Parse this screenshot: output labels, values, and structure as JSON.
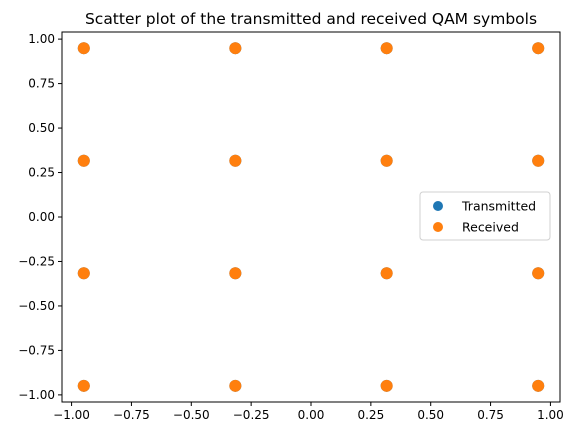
{
  "chart_data": {
    "type": "scatter",
    "title": "Scatter plot of the transmitted and received QAM symbols",
    "xlabel": "",
    "ylabel": "",
    "xlim": [
      -1.04,
      1.04
    ],
    "ylim": [
      -1.04,
      1.04
    ],
    "xticks": [
      -1.0,
      -0.75,
      -0.5,
      -0.25,
      0.0,
      0.25,
      0.5,
      0.75,
      1.0
    ],
    "yticks": [
      -1.0,
      -0.75,
      -0.5,
      -0.25,
      0.0,
      0.25,
      0.5,
      0.75,
      1.0
    ],
    "xtick_labels": [
      "−1.00",
      "−0.75",
      "−0.50",
      "−0.25",
      "0.00",
      "0.25",
      "0.50",
      "0.75",
      "1.00"
    ],
    "ytick_labels": [
      "−1.00",
      "−0.75",
      "−0.50",
      "−0.25",
      "0.00",
      "0.25",
      "0.50",
      "0.75",
      "1.00"
    ],
    "grid": false,
    "legend_position": "center-right",
    "series": [
      {
        "name": "Transmitted",
        "color": "#1f77b4",
        "points": [
          [
            -0.949,
            0.949
          ],
          [
            -0.316,
            0.949
          ],
          [
            0.316,
            0.949
          ],
          [
            0.949,
            0.949
          ],
          [
            -0.949,
            0.316
          ],
          [
            -0.316,
            0.316
          ],
          [
            0.316,
            0.316
          ],
          [
            0.949,
            0.316
          ],
          [
            -0.949,
            -0.316
          ],
          [
            -0.316,
            -0.316
          ],
          [
            0.316,
            -0.316
          ],
          [
            0.949,
            -0.316
          ],
          [
            -0.949,
            -0.949
          ],
          [
            -0.316,
            -0.949
          ],
          [
            0.316,
            -0.949
          ],
          [
            0.949,
            -0.949
          ]
        ]
      },
      {
        "name": "Received",
        "color": "#ff7f0e",
        "points": [
          [
            -0.949,
            0.949
          ],
          [
            -0.316,
            0.949
          ],
          [
            0.316,
            0.949
          ],
          [
            0.949,
            0.949
          ],
          [
            -0.949,
            0.316
          ],
          [
            -0.316,
            0.316
          ],
          [
            0.316,
            0.316
          ],
          [
            0.949,
            0.316
          ],
          [
            -0.949,
            -0.316
          ],
          [
            -0.316,
            -0.316
          ],
          [
            0.316,
            -0.316
          ],
          [
            0.949,
            -0.316
          ],
          [
            -0.949,
            -0.949
          ],
          [
            -0.316,
            -0.949
          ],
          [
            0.316,
            -0.949
          ],
          [
            0.949,
            -0.949
          ]
        ]
      }
    ]
  }
}
